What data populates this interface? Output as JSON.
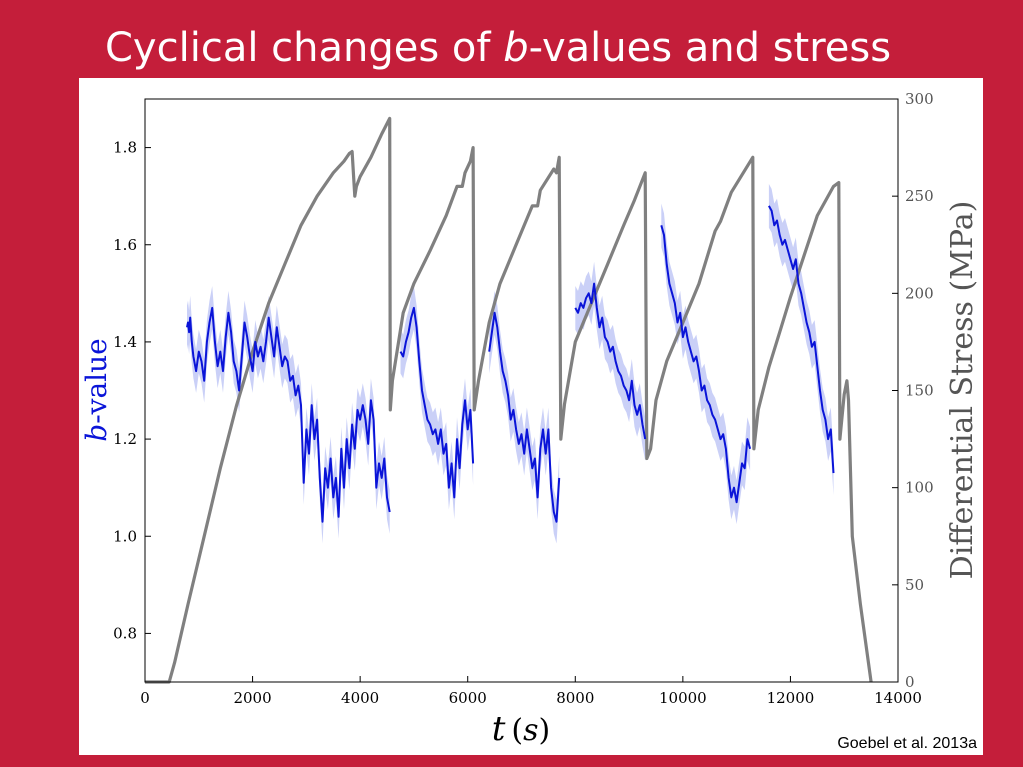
{
  "slide": {
    "title_prefix": "Cyclical changes of ",
    "title_italic": "b",
    "title_suffix": "-values and stress",
    "citation": "Goebel et al. 2013a"
  },
  "colors": {
    "background": "#c41e3a",
    "b_value_line": "#0a14d8",
    "b_value_band": "#b8c0f4",
    "stress_line": "#808080"
  },
  "chart_data": {
    "type": "line",
    "xlabel_var": "t",
    "xlabel_unit": "s",
    "ylabel_left_italic": "b",
    "ylabel_left_rest": "-value",
    "ylabel_right": "Differential Stress (MPa)",
    "xlim": [
      0,
      14000
    ],
    "ylim_left": [
      0.7,
      1.9
    ],
    "ylim_right": [
      0,
      300
    ],
    "x_ticks": [
      0,
      2000,
      4000,
      6000,
      8000,
      10000,
      12000,
      14000
    ],
    "y_left_ticks": [
      0.8,
      1.0,
      1.2,
      1.4,
      1.6,
      1.8
    ],
    "y_right_ticks": [
      0,
      50,
      100,
      150,
      200,
      250,
      300
    ],
    "grid": false,
    "series": [
      {
        "axis": "right",
        "points": [
          [
            0,
            0
          ],
          [
            450,
            0
          ],
          [
            550,
            10
          ],
          [
            800,
            40
          ],
          [
            1100,
            75
          ],
          [
            1400,
            110
          ],
          [
            1700,
            142
          ],
          [
            2000,
            170
          ],
          [
            2300,
            195
          ],
          [
            2600,
            215
          ],
          [
            2900,
            235
          ],
          [
            3200,
            250
          ],
          [
            3500,
            262
          ],
          [
            3700,
            268
          ],
          [
            3800,
            272
          ],
          [
            3850,
            273
          ],
          [
            3900,
            250
          ],
          [
            3930,
            255
          ],
          [
            4000,
            260
          ],
          [
            4200,
            270
          ],
          [
            4400,
            282
          ],
          [
            4550,
            290
          ],
          [
            4560,
            140
          ],
          [
            4600,
            155
          ],
          [
            4800,
            190
          ],
          [
            5000,
            205
          ],
          [
            5300,
            222
          ],
          [
            5600,
            240
          ],
          [
            5800,
            255
          ],
          [
            5900,
            255
          ],
          [
            5950,
            262
          ],
          [
            6050,
            268
          ],
          [
            6100,
            275
          ],
          [
            6120,
            140
          ],
          [
            6200,
            155
          ],
          [
            6400,
            185
          ],
          [
            6600,
            205
          ],
          [
            6900,
            225
          ],
          [
            7200,
            245
          ],
          [
            7300,
            245
          ],
          [
            7350,
            253
          ],
          [
            7600,
            264
          ],
          [
            7650,
            262
          ],
          [
            7700,
            270
          ],
          [
            7730,
            125
          ],
          [
            7800,
            143
          ],
          [
            8000,
            175
          ],
          [
            8300,
            195
          ],
          [
            8600,
            215
          ],
          [
            8900,
            235
          ],
          [
            9100,
            248
          ],
          [
            9300,
            262
          ],
          [
            9330,
            115
          ],
          [
            9400,
            120
          ],
          [
            9500,
            145
          ],
          [
            9700,
            165
          ],
          [
            10000,
            185
          ],
          [
            10300,
            205
          ],
          [
            10600,
            232
          ],
          [
            10700,
            237
          ],
          [
            10900,
            252
          ],
          [
            11300,
            270
          ],
          [
            11320,
            120
          ],
          [
            11400,
            140
          ],
          [
            11600,
            162
          ],
          [
            11800,
            180
          ],
          [
            12000,
            198
          ],
          [
            12200,
            215
          ],
          [
            12500,
            240
          ],
          [
            12800,
            255
          ],
          [
            12900,
            257
          ],
          [
            12920,
            125
          ],
          [
            13000,
            148
          ],
          [
            13050,
            155
          ],
          [
            13080,
            145
          ],
          [
            13150,
            75
          ],
          [
            13300,
            40
          ],
          [
            13500,
            0
          ]
        ]
      },
      {
        "axis": "left",
        "points": [
          [
            780,
            1.43
          ],
          [
            800,
            1.44
          ],
          [
            820,
            1.42
          ],
          [
            840,
            1.45
          ],
          [
            870,
            1.4
          ],
          [
            900,
            1.37
          ],
          [
            950,
            1.34
          ],
          [
            1000,
            1.38
          ],
          [
            1050,
            1.36
          ],
          [
            1100,
            1.32
          ],
          [
            1150,
            1.4
          ],
          [
            1200,
            1.44
          ],
          [
            1250,
            1.47
          ],
          [
            1300,
            1.4
          ],
          [
            1350,
            1.35
          ],
          [
            1400,
            1.38
          ],
          [
            1450,
            1.34
          ],
          [
            1500,
            1.41
          ],
          [
            1550,
            1.46
          ],
          [
            1600,
            1.42
          ],
          [
            1650,
            1.36
          ],
          [
            1700,
            1.34
          ],
          [
            1750,
            1.3
          ],
          [
            1800,
            1.37
          ],
          [
            1850,
            1.44
          ],
          [
            1900,
            1.41
          ],
          [
            1950,
            1.37
          ],
          [
            2000,
            1.34
          ],
          [
            2050,
            1.4
          ],
          [
            2100,
            1.37
          ],
          [
            2150,
            1.39
          ],
          [
            2200,
            1.36
          ],
          [
            2250,
            1.4
          ],
          [
            2300,
            1.45
          ],
          [
            2350,
            1.41
          ],
          [
            2400,
            1.37
          ],
          [
            2450,
            1.43
          ],
          [
            2500,
            1.39
          ],
          [
            2550,
            1.35
          ],
          [
            2600,
            1.37
          ],
          [
            2650,
            1.36
          ],
          [
            2700,
            1.32
          ],
          [
            2750,
            1.33
          ],
          [
            2800,
            1.29
          ],
          [
            2850,
            1.31
          ],
          [
            2900,
            1.27
          ],
          [
            2950,
            1.11
          ],
          [
            3000,
            1.22
          ],
          [
            3050,
            1.17
          ],
          [
            3100,
            1.27
          ],
          [
            3150,
            1.2
          ],
          [
            3200,
            1.24
          ],
          [
            3250,
            1.12
          ],
          [
            3300,
            1.03
          ],
          [
            3350,
            1.14
          ],
          [
            3400,
            1.1
          ],
          [
            3450,
            1.16
          ],
          [
            3500,
            1.08
          ],
          [
            3550,
            1.12
          ],
          [
            3600,
            1.04
          ],
          [
            3650,
            1.18
          ],
          [
            3700,
            1.1
          ],
          [
            3750,
            1.2
          ],
          [
            3800,
            1.14
          ],
          [
            3850,
            1.23
          ],
          [
            3900,
            1.18
          ],
          [
            3950,
            1.26
          ],
          [
            4000,
            1.24
          ],
          [
            4050,
            1.27
          ],
          [
            4100,
            1.24
          ],
          [
            4150,
            1.19
          ],
          [
            4200,
            1.28
          ],
          [
            4250,
            1.24
          ],
          [
            4300,
            1.1
          ],
          [
            4350,
            1.15
          ],
          [
            4400,
            1.12
          ],
          [
            4450,
            1.16
          ],
          [
            4500,
            1.08
          ],
          [
            4550,
            1.05
          ],
          [
            null,
            null
          ],
          [
            4750,
            1.38
          ],
          [
            4800,
            1.37
          ],
          [
            4850,
            1.4
          ],
          [
            4900,
            1.42
          ],
          [
            4950,
            1.45
          ],
          [
            5000,
            1.47
          ],
          [
            5050,
            1.43
          ],
          [
            5100,
            1.36
          ],
          [
            5150,
            1.3
          ],
          [
            5200,
            1.27
          ],
          [
            5250,
            1.24
          ],
          [
            5300,
            1.23
          ],
          [
            5350,
            1.21
          ],
          [
            5400,
            1.22
          ],
          [
            5450,
            1.19
          ],
          [
            5500,
            1.22
          ],
          [
            5550,
            1.17
          ],
          [
            5600,
            1.19
          ],
          [
            5650,
            1.1
          ],
          [
            5700,
            1.15
          ],
          [
            5750,
            1.08
          ],
          [
            5800,
            1.2
          ],
          [
            5850,
            1.14
          ],
          [
            5900,
            1.23
          ],
          [
            5950,
            1.28
          ],
          [
            6000,
            1.22
          ],
          [
            6050,
            1.26
          ],
          [
            6100,
            1.15
          ],
          [
            null,
            null
          ],
          [
            6400,
            1.38
          ],
          [
            6450,
            1.42
          ],
          [
            6500,
            1.46
          ],
          [
            6550,
            1.43
          ],
          [
            6600,
            1.38
          ],
          [
            6650,
            1.34
          ],
          [
            6700,
            1.32
          ],
          [
            6750,
            1.29
          ],
          [
            6800,
            1.24
          ],
          [
            6850,
            1.26
          ],
          [
            6900,
            1.22
          ],
          [
            6950,
            1.19
          ],
          [
            7000,
            1.21
          ],
          [
            7050,
            1.17
          ],
          [
            7100,
            1.22
          ],
          [
            7150,
            1.18
          ],
          [
            7200,
            1.14
          ],
          [
            7250,
            1.16
          ],
          [
            7300,
            1.08
          ],
          [
            7350,
            1.18
          ],
          [
            7400,
            1.22
          ],
          [
            7450,
            1.17
          ],
          [
            7500,
            1.22
          ],
          [
            7550,
            1.1
          ],
          [
            7600,
            1.05
          ],
          [
            7650,
            1.03
          ],
          [
            7700,
            1.12
          ],
          [
            null,
            null
          ],
          [
            8000,
            1.47
          ],
          [
            8050,
            1.46
          ],
          [
            8100,
            1.48
          ],
          [
            8150,
            1.47
          ],
          [
            8200,
            1.49
          ],
          [
            8250,
            1.5
          ],
          [
            8300,
            1.48
          ],
          [
            8350,
            1.52
          ],
          [
            8400,
            1.47
          ],
          [
            8450,
            1.43
          ],
          [
            8500,
            1.45
          ],
          [
            8550,
            1.41
          ],
          [
            8600,
            1.4
          ],
          [
            8650,
            1.38
          ],
          [
            8700,
            1.39
          ],
          [
            8750,
            1.36
          ],
          [
            8800,
            1.34
          ],
          [
            8850,
            1.33
          ],
          [
            8900,
            1.31
          ],
          [
            8950,
            1.3
          ],
          [
            9000,
            1.28
          ],
          [
            9050,
            1.32
          ],
          [
            9100,
            1.27
          ],
          [
            9150,
            1.25
          ],
          [
            9200,
            1.27
          ],
          [
            9250,
            1.23
          ],
          [
            9300,
            1.2
          ],
          [
            null,
            null
          ],
          [
            9600,
            1.64
          ],
          [
            9650,
            1.62
          ],
          [
            9700,
            1.56
          ],
          [
            9750,
            1.52
          ],
          [
            9800,
            1.5
          ],
          [
            9850,
            1.48
          ],
          [
            9900,
            1.44
          ],
          [
            9950,
            1.46
          ],
          [
            10000,
            1.41
          ],
          [
            10050,
            1.43
          ],
          [
            10100,
            1.4
          ],
          [
            10150,
            1.38
          ],
          [
            10200,
            1.36
          ],
          [
            10250,
            1.37
          ],
          [
            10300,
            1.34
          ],
          [
            10350,
            1.3
          ],
          [
            10400,
            1.31
          ],
          [
            10450,
            1.28
          ],
          [
            10500,
            1.27
          ],
          [
            10550,
            1.25
          ],
          [
            10600,
            1.24
          ],
          [
            10650,
            1.22
          ],
          [
            10700,
            1.2
          ],
          [
            10750,
            1.21
          ],
          [
            10800,
            1.18
          ],
          [
            10850,
            1.12
          ],
          [
            10900,
            1.08
          ],
          [
            10950,
            1.1
          ],
          [
            11000,
            1.07
          ],
          [
            11050,
            1.11
          ],
          [
            11100,
            1.15
          ],
          [
            11150,
            1.14
          ],
          [
            11200,
            1.2
          ],
          [
            11250,
            1.18
          ],
          [
            null,
            null
          ],
          [
            11600,
            1.68
          ],
          [
            11650,
            1.67
          ],
          [
            11700,
            1.64
          ],
          [
            11750,
            1.65
          ],
          [
            11800,
            1.62
          ],
          [
            11850,
            1.6
          ],
          [
            11900,
            1.61
          ],
          [
            11950,
            1.59
          ],
          [
            12000,
            1.57
          ],
          [
            12050,
            1.55
          ],
          [
            12100,
            1.57
          ],
          [
            12150,
            1.52
          ],
          [
            12200,
            1.5
          ],
          [
            12250,
            1.47
          ],
          [
            12300,
            1.44
          ],
          [
            12350,
            1.42
          ],
          [
            12400,
            1.39
          ],
          [
            12450,
            1.4
          ],
          [
            12500,
            1.35
          ],
          [
            12550,
            1.3
          ],
          [
            12600,
            1.26
          ],
          [
            12650,
            1.24
          ],
          [
            12700,
            1.2
          ],
          [
            12750,
            1.22
          ],
          [
            12800,
            1.13
          ]
        ]
      }
    ]
  }
}
